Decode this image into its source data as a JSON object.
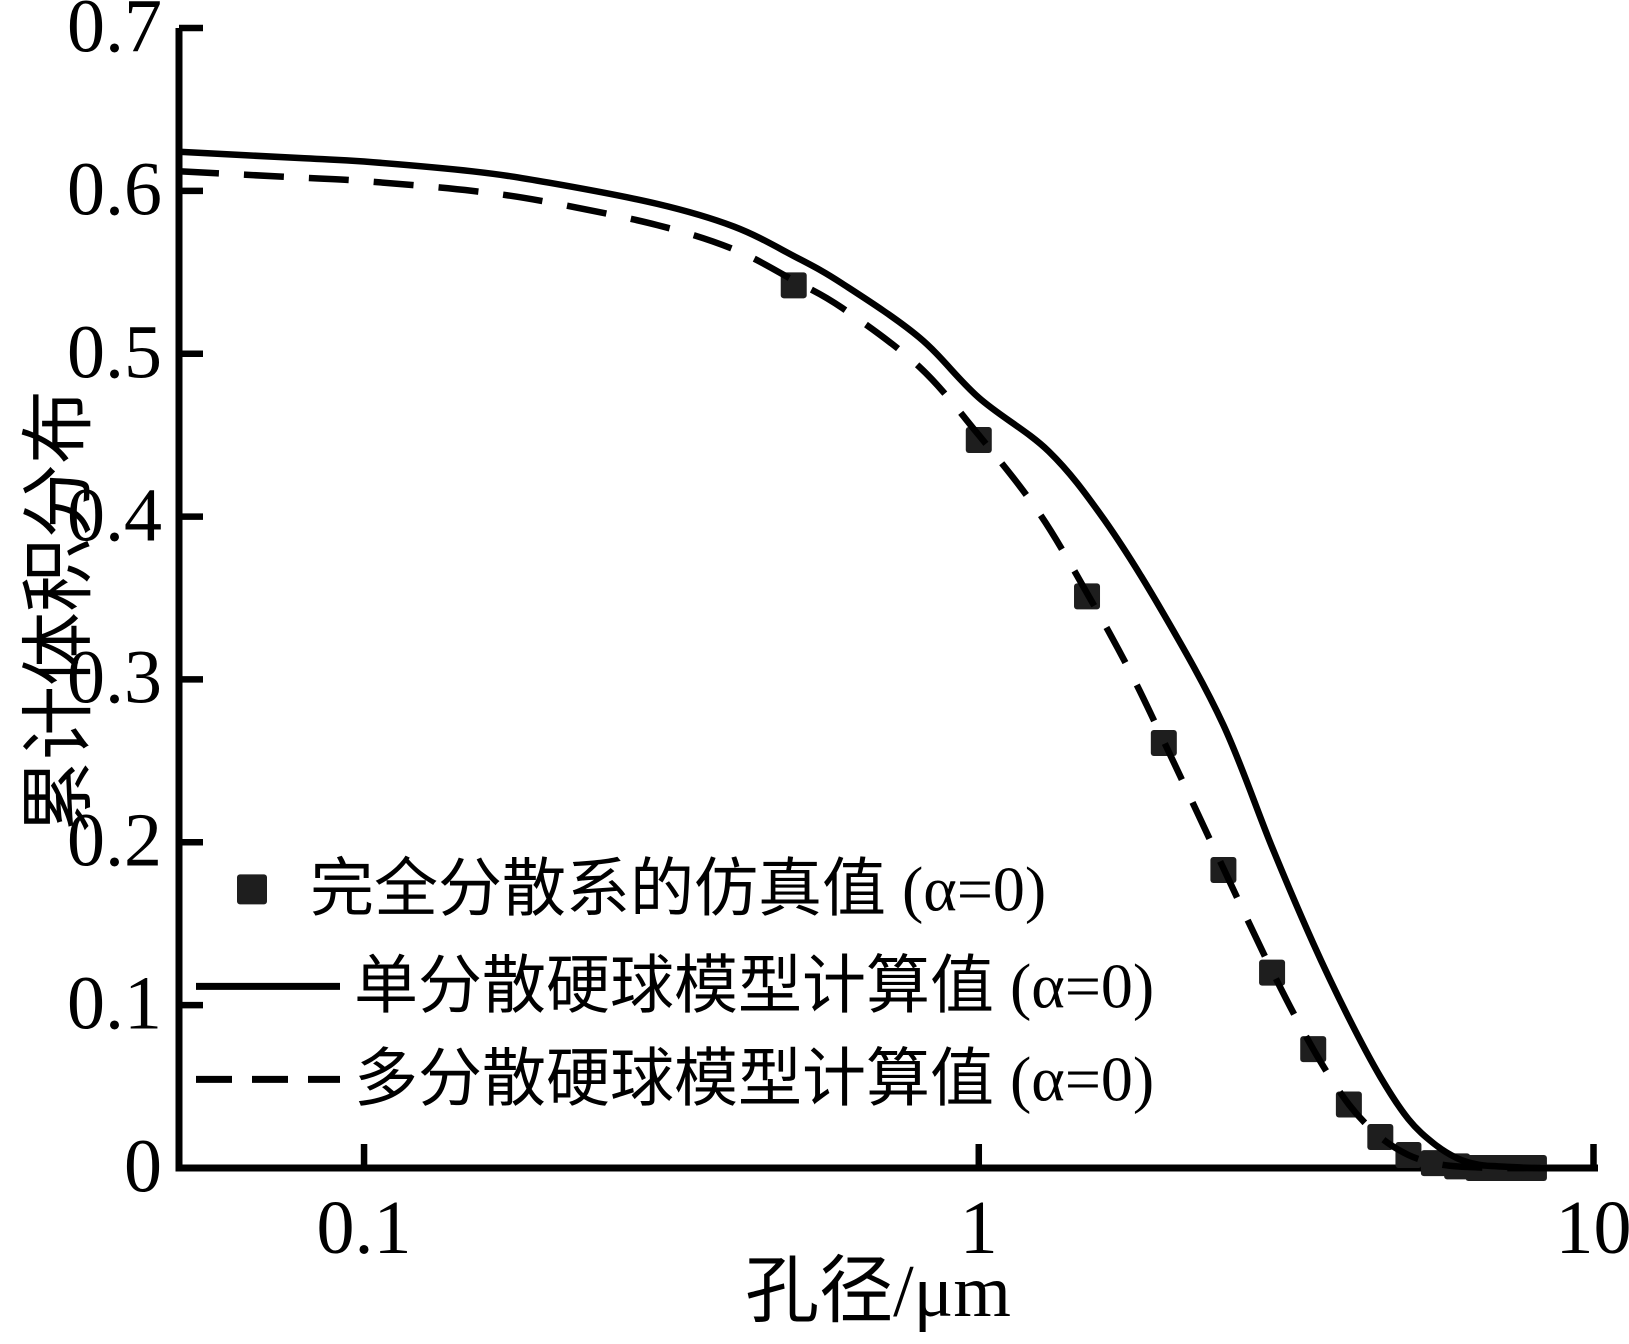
{
  "figure": {
    "background_color": "#ffffff",
    "ink_color": "#000000",
    "marker_color": "#1e1e1e"
  },
  "axes": {
    "x": {
      "title": "孔径/μm",
      "scale": "log",
      "min": 0.05,
      "max": 10,
      "ticks": [
        {
          "value": 0.1,
          "label": "0.1"
        },
        {
          "value": 1,
          "label": "1"
        },
        {
          "value": 10,
          "label": "10"
        }
      ]
    },
    "y": {
      "title": "累计体积分布",
      "scale": "linear",
      "min": 0,
      "max": 0.7,
      "ticks": [
        {
          "value": 0.0,
          "label": "0"
        },
        {
          "value": 0.1,
          "label": "0.1"
        },
        {
          "value": 0.2,
          "label": "0.2"
        },
        {
          "value": 0.3,
          "label": "0.3"
        },
        {
          "value": 0.4,
          "label": "0.4"
        },
        {
          "value": 0.5,
          "label": "0.5"
        },
        {
          "value": 0.6,
          "label": "0.6"
        },
        {
          "value": 0.7,
          "label": "0.7"
        }
      ]
    }
  },
  "legend": {
    "items": [
      {
        "label": "完全分散系的仿真值 (α=0)",
        "swatch": "square-marker"
      },
      {
        "label": "单分散硬球模型计算值 (α=0)",
        "swatch": "solid-line"
      },
      {
        "label": "多分散硬球模型计算值 (α=0)",
        "swatch": "dashed-line"
      }
    ]
  },
  "chart_data": {
    "type": "line",
    "title": "",
    "xlabel": "孔径/μm",
    "ylabel": "累计体积分布",
    "x_scale": "log",
    "xlim": [
      0.05,
      10
    ],
    "ylim": [
      0,
      0.7
    ],
    "grid": false,
    "legend_position": "lower-left-inside",
    "series": [
      {
        "name": "完全分散系的仿真值 (α=0)",
        "type": "scatter",
        "marker": "filled-square",
        "points": [
          [
            0.5,
            0.542
          ],
          [
            1.0,
            0.447
          ],
          [
            1.5,
            0.351
          ],
          [
            2.0,
            0.261
          ],
          [
            2.5,
            0.183
          ],
          [
            3.0,
            0.12
          ],
          [
            3.5,
            0.073
          ],
          [
            4.0,
            0.039
          ],
          [
            4.5,
            0.019
          ],
          [
            5.0,
            0.008
          ],
          [
            5.5,
            0.003
          ],
          [
            6.0,
            0.001
          ],
          [
            6.5,
            0.0
          ],
          [
            7.0,
            0.0
          ],
          [
            7.5,
            0.0
          ],
          [
            8.0,
            0.0
          ]
        ]
      },
      {
        "name": "单分散硬球模型计算值 (α=0)",
        "type": "line",
        "style": "solid",
        "points": [
          [
            0.05,
            0.624
          ],
          [
            0.08,
            0.62
          ],
          [
            0.1,
            0.618
          ],
          [
            0.15,
            0.612
          ],
          [
            0.2,
            0.605
          ],
          [
            0.3,
            0.592
          ],
          [
            0.4,
            0.578
          ],
          [
            0.5,
            0.56
          ],
          [
            0.6,
            0.543
          ],
          [
            0.8,
            0.51
          ],
          [
            1.0,
            0.473
          ],
          [
            1.3,
            0.44
          ],
          [
            1.6,
            0.398
          ],
          [
            2.0,
            0.34
          ],
          [
            2.5,
            0.272
          ],
          [
            3.0,
            0.197
          ],
          [
            3.5,
            0.138
          ],
          [
            4.0,
            0.092
          ],
          [
            4.5,
            0.056
          ],
          [
            5.0,
            0.03
          ],
          [
            5.5,
            0.015
          ],
          [
            6.0,
            0.006
          ],
          [
            6.5,
            0.002
          ],
          [
            7.0,
            0.001
          ],
          [
            8.0,
            0.0
          ],
          [
            9.3,
            0.0
          ]
        ]
      },
      {
        "name": "多分散硬球模型计算值 (α=0)",
        "type": "line",
        "style": "dashed",
        "points": [
          [
            0.05,
            0.612
          ],
          [
            0.08,
            0.608
          ],
          [
            0.1,
            0.606
          ],
          [
            0.15,
            0.6
          ],
          [
            0.2,
            0.593
          ],
          [
            0.3,
            0.579
          ],
          [
            0.4,
            0.564
          ],
          [
            0.5,
            0.545
          ],
          [
            0.6,
            0.528
          ],
          [
            0.8,
            0.492
          ],
          [
            1.0,
            0.45
          ],
          [
            1.25,
            0.403
          ],
          [
            1.5,
            0.353
          ],
          [
            1.75,
            0.307
          ],
          [
            2.0,
            0.262
          ],
          [
            2.5,
            0.184
          ],
          [
            3.0,
            0.121
          ],
          [
            3.5,
            0.073
          ],
          [
            4.0,
            0.039
          ],
          [
            4.5,
            0.019
          ],
          [
            5.0,
            0.008
          ],
          [
            5.5,
            0.003
          ],
          [
            6.0,
            0.001
          ],
          [
            7.0,
            0.0
          ],
          [
            8.2,
            0.0
          ]
        ]
      }
    ]
  }
}
